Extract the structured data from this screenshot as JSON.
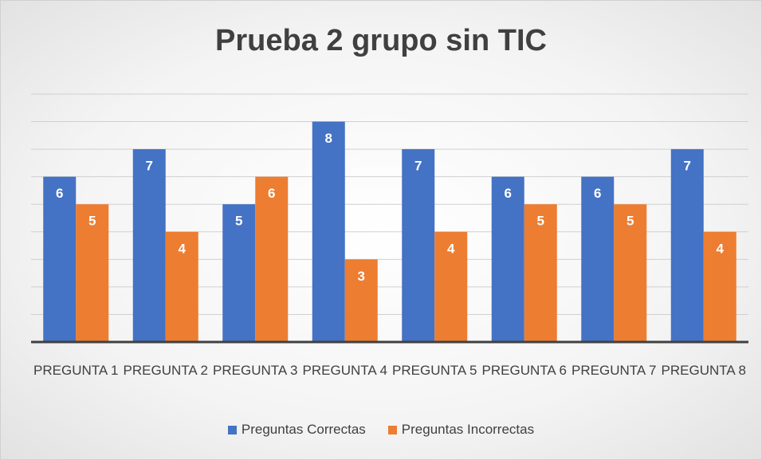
{
  "chart_data": {
    "type": "bar",
    "title": "Prueba 2 grupo sin TIC",
    "categories": [
      "PREGUNTA 1",
      "PREGUNTA 2",
      "PREGUNTA 3",
      "PREGUNTA 4",
      "PREGUNTA 5",
      "PREGUNTA 6",
      "PREGUNTA 7",
      "PREGUNTA 8"
    ],
    "series": [
      {
        "name": "Preguntas Correctas",
        "color": "#4472c4",
        "values": [
          6,
          7,
          5,
          8,
          7,
          6,
          6,
          7
        ]
      },
      {
        "name": "Preguntas Incorrectas",
        "color": "#ed7d31",
        "values": [
          5,
          4,
          6,
          3,
          4,
          5,
          5,
          4
        ]
      }
    ],
    "ylim": [
      0,
      9
    ],
    "yticks": [
      0,
      1,
      2,
      3,
      4,
      5,
      6,
      7,
      8,
      9
    ],
    "grid": true,
    "legend": "bottom"
  }
}
